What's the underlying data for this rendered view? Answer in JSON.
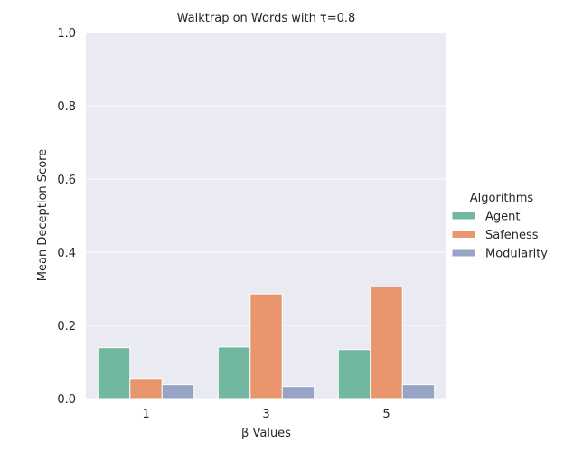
{
  "chart_data": {
    "type": "bar",
    "title": "Walktrap on Words with τ=0.8",
    "xlabel": "β Values",
    "ylabel": "Mean Deception Score",
    "categories": [
      "1",
      "3",
      "5"
    ],
    "ylim": [
      0,
      1.0
    ],
    "yticks": [
      "0.0",
      "0.2",
      "0.4",
      "0.6",
      "0.8",
      "1.0"
    ],
    "grid": true,
    "legend": {
      "title": "Algorithms",
      "placement": "right"
    },
    "series": [
      {
        "name": "Agent",
        "color": "#72b8a1",
        "values": [
          0.139,
          0.141,
          0.134
        ]
      },
      {
        "name": "Safeness",
        "color": "#e9966f",
        "values": [
          0.055,
          0.286,
          0.305
        ]
      },
      {
        "name": "Modularity",
        "color": "#98a4c6",
        "values": [
          0.038,
          0.033,
          0.038
        ]
      }
    ]
  }
}
